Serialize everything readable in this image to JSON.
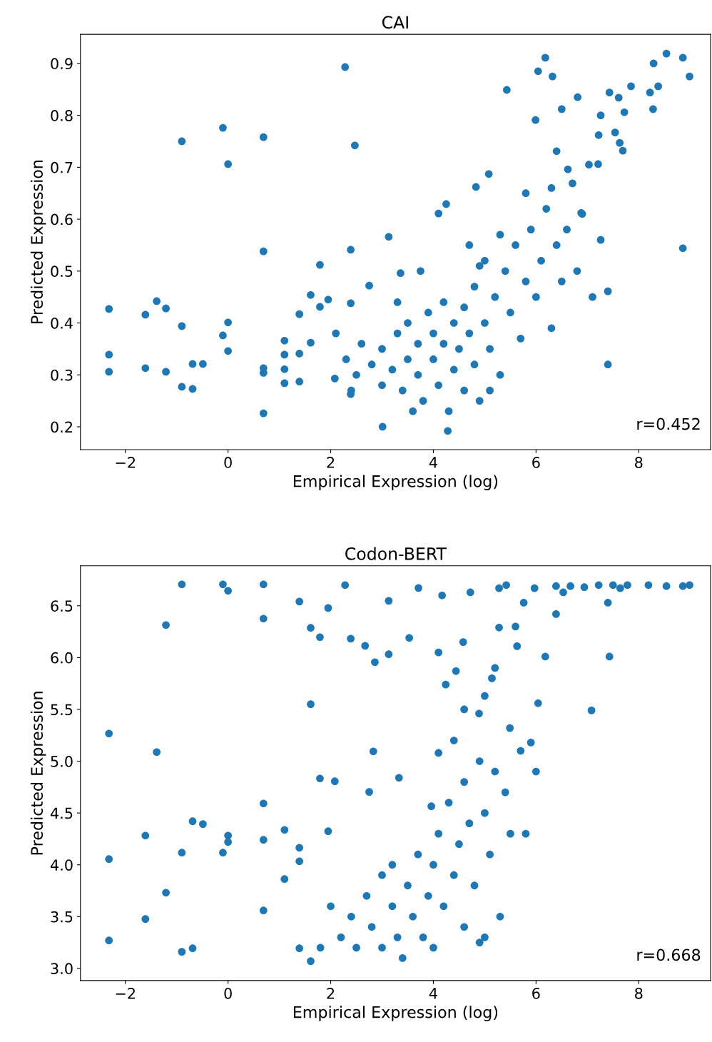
{
  "chart_data": [
    {
      "type": "scatter",
      "title": "CAI",
      "xlabel": "Empirical Expression (log)",
      "ylabel": "Predicted Expression",
      "color": "#1f77b4",
      "marker": "circle",
      "grid": false,
      "legend": false,
      "xlim": [
        -2.875,
        9.4
      ],
      "ylim": [
        0.156,
        0.956
      ],
      "xticks": [
        {
          "value": -2,
          "label": "−2"
        },
        0,
        2,
        4,
        6,
        8
      ],
      "yticks": [
        0.2,
        0.3,
        0.4,
        0.5,
        0.6,
        0.7,
        0.8,
        0.9
      ],
      "annotations": [
        "r=0.452"
      ],
      "x": [
        -2.32,
        -2.32,
        -2.32,
        -1.61,
        -1.61,
        -1.39,
        -1.21,
        -1.21,
        -0.9,
        -0.9,
        -0.9,
        -0.69,
        -0.69,
        -0.49,
        -0.1,
        0,
        0,
        -0.1,
        0,
        0.69,
        0.69,
        0.69,
        0.69,
        0.69,
        1.1,
        1.1,
        1.1,
        1.1,
        1.39,
        1.39,
        1.39,
        1.61,
        1.61,
        1.79,
        1.79,
        1.95,
        2.08,
        2.28,
        2.39,
        2.39,
        2.47,
        2.39,
        2.75,
        3.13,
        3.01,
        3.36,
        3.75,
        4.1,
        4.25,
        4.28,
        4.83,
        5.08,
        5.43,
        5.99,
        6.04,
        6.18,
        6.32,
        6.5,
        6.81,
        6.4,
        6.62,
        6.71,
        6.88,
        7.03,
        7.21,
        7.26,
        7.1,
        7.4,
        7.4,
        7.22,
        7.26,
        7.43,
        7.54,
        7.63,
        7.69,
        7.72,
        7.61,
        7.85,
        8.22,
        8.29,
        8.28,
        8.38,
        8.54,
        8.86,
        8.99,
        8.86,
        2.3,
        2.5,
        2.6,
        2.8,
        3.0,
        3.0,
        3.2,
        3.3,
        3.4,
        3.5,
        3.5,
        3.7,
        3.7,
        3.8,
        3.9,
        4.0,
        4.0,
        4.1,
        4.2,
        4.2,
        4.3,
        4.4,
        4.4,
        4.5,
        4.6,
        4.6,
        4.7,
        4.8,
        4.8,
        4.9,
        5.0,
        5.0,
        5.1,
        5.2,
        5.3,
        5.4,
        5.5,
        5.6,
        5.7,
        5.8,
        5.9,
        6.0,
        6.1,
        6.2,
        6.3,
        6.4,
        6.5,
        6.6,
        6.8,
        6.9,
        4.7,
        4.9,
        5.3,
        5.8,
        6.3,
        3.3,
        2.1,
        2.4,
        3.6,
        5.1
      ],
      "values": [
        0.427,
        0.339,
        0.306,
        0.416,
        0.313,
        0.442,
        0.428,
        0.306,
        0.75,
        0.394,
        0.277,
        0.273,
        0.321,
        0.321,
        0.776,
        0.706,
        0.401,
        0.376,
        0.346,
        0.758,
        0.538,
        0.313,
        0.304,
        0.226,
        0.366,
        0.339,
        0.311,
        0.284,
        0.417,
        0.341,
        0.287,
        0.454,
        0.362,
        0.512,
        0.431,
        0.445,
        0.293,
        0.893,
        0.541,
        0.438,
        0.742,
        0.263,
        0.472,
        0.566,
        0.2,
        0.496,
        0.5,
        0.611,
        0.629,
        0.192,
        0.662,
        0.687,
        0.849,
        0.791,
        0.885,
        0.911,
        0.875,
        0.812,
        0.835,
        0.731,
        0.696,
        0.669,
        0.612,
        0.705,
        0.706,
        0.56,
        0.45,
        0.461,
        0.32,
        0.762,
        0.8,
        0.844,
        0.767,
        0.747,
        0.732,
        0.806,
        0.834,
        0.856,
        0.844,
        0.9,
        0.812,
        0.856,
        0.919,
        0.911,
        0.875,
        0.544,
        0.33,
        0.3,
        0.36,
        0.32,
        0.28,
        0.35,
        0.31,
        0.38,
        0.27,
        0.33,
        0.4,
        0.3,
        0.36,
        0.25,
        0.42,
        0.33,
        0.38,
        0.28,
        0.36,
        0.44,
        0.23,
        0.31,
        0.4,
        0.35,
        0.27,
        0.43,
        0.38,
        0.32,
        0.47,
        0.25,
        0.4,
        0.52,
        0.35,
        0.45,
        0.3,
        0.5,
        0.42,
        0.55,
        0.37,
        0.48,
        0.58,
        0.45,
        0.52,
        0.62,
        0.39,
        0.55,
        0.48,
        0.58,
        0.5,
        0.61,
        0.55,
        0.51,
        0.57,
        0.65,
        0.66,
        0.44,
        0.38,
        0.27,
        0.23,
        0.27
      ]
    },
    {
      "type": "scatter",
      "title": "Codon-BERT",
      "xlabel": "Empirical Expression (log)",
      "ylabel": "Predicted Expression",
      "color": "#1f77b4",
      "marker": "circle",
      "grid": false,
      "legend": false,
      "xlim": [
        -2.875,
        9.4
      ],
      "ylim": [
        2.883,
        6.886
      ],
      "xticks": [
        {
          "value": -2,
          "label": "−2"
        },
        0,
        2,
        4,
        6,
        8
      ],
      "yticks": [
        {
          "value": 3,
          "label": "3.0"
        },
        3.5,
        {
          "value": 4,
          "label": "4.0"
        },
        4.5,
        {
          "value": 5,
          "label": "5.0"
        },
        5.5,
        {
          "value": 6,
          "label": "6.0"
        },
        6.5
      ],
      "annotations": [
        "r=0.668"
      ],
      "x": [
        -2.32,
        -2.32,
        -2.32,
        -1.61,
        -1.61,
        -1.39,
        -1.21,
        -1.21,
        -0.9,
        -0.9,
        -0.9,
        -0.69,
        -0.69,
        -0.49,
        -0.1,
        0,
        -0.1,
        0,
        0,
        0.69,
        0.69,
        0.69,
        0.69,
        0.69,
        1.1,
        1.1,
        1.39,
        1.39,
        1.39,
        1.39,
        1.61,
        1.61,
        1.61,
        1.79,
        1.79,
        1.95,
        1.95,
        2.08,
        2.28,
        2.39,
        2.67,
        2.86,
        3.13,
        3.13,
        2.83,
        2.75,
        3.33,
        3.53,
        3.71,
        4.1,
        3.96,
        4.1,
        4.24,
        4.44,
        4.58,
        4.72,
        4.89,
        5.0,
        5.14,
        5.28,
        5.42,
        5.49,
        5.63,
        5.76,
        5.9,
        6.04,
        6.18,
        6.39,
        6.53,
        7.08,
        7.43,
        7.4,
        4.17,
        5.28,
        5.97,
        6.39,
        6.67,
        6.94,
        7.22,
        7.5,
        7.78,
        8.19,
        8.54,
        8.86,
        8.99,
        7.64,
        2.2,
        2.4,
        2.5,
        2.7,
        2.8,
        3.0,
        3.0,
        3.2,
        3.3,
        3.4,
        3.5,
        3.6,
        3.7,
        3.8,
        3.9,
        4.0,
        4.0,
        4.1,
        4.2,
        4.3,
        4.4,
        4.5,
        4.6,
        4.6,
        4.7,
        4.8,
        4.9,
        5.0,
        5.1,
        5.2,
        5.3,
        5.4,
        5.5,
        5.7,
        5.8,
        6.0,
        5.0,
        3.2,
        2.0,
        1.8,
        4.4,
        4.6,
        5.2,
        5.6,
        4.9
      ],
      "values": [
        5.267,
        4.055,
        3.27,
        4.282,
        3.477,
        5.088,
        6.314,
        3.731,
        6.707,
        4.117,
        3.16,
        3.194,
        4.42,
        4.393,
        6.707,
        6.645,
        4.117,
        4.282,
        4.22,
        6.707,
        6.376,
        4.592,
        4.241,
        3.559,
        4.337,
        3.862,
        6.541,
        4.165,
        4.034,
        3.194,
        5.55,
        6.287,
        3.07,
        6.197,
        4.833,
        6.479,
        4.324,
        4.806,
        6.7,
        6.183,
        6.114,
        5.956,
        6.032,
        6.548,
        5.095,
        4.703,
        4.84,
        6.19,
        6.672,
        6.05,
        4.565,
        5.08,
        5.74,
        5.87,
        6.15,
        6.63,
        5.46,
        5.63,
        5.8,
        6.29,
        6.7,
        5.32,
        6.11,
        6.53,
        5.18,
        5.56,
        6.01,
        6.42,
        6.63,
        5.49,
        6.01,
        6.53,
        6.6,
        6.67,
        6.67,
        6.69,
        6.69,
        6.68,
        6.7,
        6.7,
        6.7,
        6.7,
        6.69,
        6.69,
        6.7,
        6.67,
        3.3,
        3.5,
        3.2,
        3.7,
        3.4,
        3.2,
        3.9,
        3.6,
        3.3,
        3.1,
        3.8,
        3.5,
        4.1,
        3.3,
        3.7,
        4.0,
        3.2,
        4.3,
        3.6,
        4.6,
        3.9,
        4.2,
        3.4,
        4.8,
        4.4,
        3.8,
        5.0,
        4.5,
        4.1,
        4.9,
        3.5,
        4.7,
        4.3,
        5.1,
        4.3,
        4.9,
        3.3,
        4.0,
        3.6,
        3.2,
        5.2,
        5.5,
        5.9,
        6.3,
        3.25
      ]
    }
  ]
}
